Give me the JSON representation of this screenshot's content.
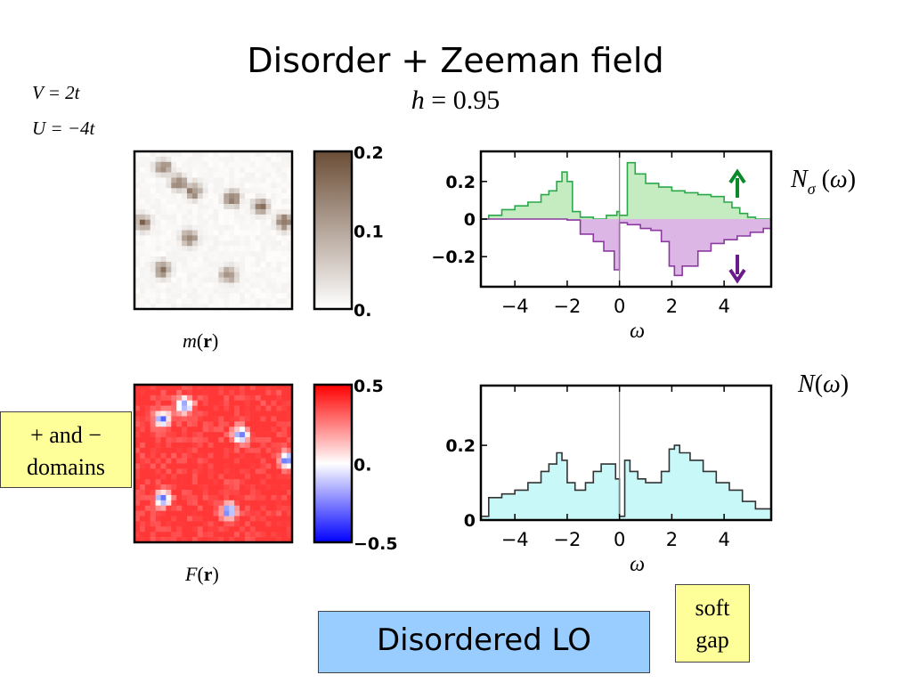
{
  "slide": {
    "title": "Disorder + Zeeman field",
    "h_label": "h = 0.95",
    "params": [
      "V = 2t",
      "U = −4t"
    ],
    "domains_note": [
      "+ and −",
      "domains"
    ],
    "soft_gap_note": [
      "soft",
      "gap"
    ],
    "lo_label": "Disordered LO"
  },
  "colors": {
    "up": "#2aa84a",
    "up_fill": "#c5ecc0",
    "down": "#8c3aa0",
    "down_fill": "#dcb6e4",
    "total_line": "#333333",
    "total_fill": "#c8f8f8",
    "map_m": "#6b4d36",
    "map_f_pos": "#ff2020",
    "map_f_neg": "#0000ff",
    "arrow_up": "#0a8a2a",
    "arrow_down": "#6a1a8a"
  },
  "chart_data": [
    {
      "type": "heatmap",
      "label": "m(r)",
      "colorbar": {
        "ticks": [
          "0.2",
          "0.1",
          "0."
        ],
        "range": [
          0,
          0.2
        ],
        "colors": [
          "#ffffff",
          "#6b4d36"
        ]
      },
      "grid": 30,
      "blobs": [
        [
          0.18,
          0.1
        ],
        [
          0.28,
          0.2
        ],
        [
          0.38,
          0.25
        ],
        [
          0.62,
          0.3
        ],
        [
          0.8,
          0.35
        ],
        [
          0.95,
          0.45
        ],
        [
          0.05,
          0.45
        ],
        [
          0.18,
          0.75
        ],
        [
          0.6,
          0.78
        ],
        [
          0.35,
          0.55
        ]
      ]
    },
    {
      "type": "heatmap",
      "label": "F(r)",
      "colorbar": {
        "ticks": [
          "0.5",
          "0.",
          "−0.5"
        ],
        "range": [
          -0.5,
          0.5
        ],
        "colors": [
          "#0000ff",
          "#ffffff",
          "#ff0000"
        ]
      },
      "grid": 30,
      "blobs": [
        [
          0.32,
          0.13
        ],
        [
          0.18,
          0.22
        ],
        [
          0.67,
          0.32
        ],
        [
          0.97,
          0.48
        ],
        [
          0.18,
          0.72
        ],
        [
          0.6,
          0.8
        ]
      ]
    },
    {
      "type": "area",
      "xlabel": "ω",
      "legend": "Nσ(ω)",
      "xlim": [
        -5.3,
        5.8
      ],
      "ylim": [
        -0.36,
        0.36
      ],
      "xticks": [
        -4,
        -2,
        0,
        2,
        4
      ],
      "xtick_labels": [
        "−4",
        "−2",
        "0",
        "2",
        "4"
      ],
      "yticks": [
        0.2,
        0,
        -0.2
      ],
      "ytick_labels": [
        "0.2",
        "0",
        "−0.2"
      ],
      "series": [
        {
          "role": "up",
          "x": [
            -5.3,
            -5,
            -4.5,
            -4,
            -3.5,
            -3,
            -2.7,
            -2.4,
            -2.2,
            -2.0,
            -1.8,
            -1.5,
            -1.0,
            -0.5,
            -0.1,
            0,
            0.3,
            0.6,
            1.0,
            1.5,
            2.0,
            2.5,
            3.0,
            3.5,
            4.0,
            4.3,
            4.6,
            4.9,
            5.2,
            5.8
          ],
          "values": [
            0,
            0.02,
            0.05,
            0.07,
            0.09,
            0.13,
            0.15,
            0.2,
            0.25,
            0.2,
            0.04,
            0.01,
            0,
            0.02,
            0.04,
            0.02,
            0.3,
            0.24,
            0.19,
            0.17,
            0.15,
            0.14,
            0.13,
            0.12,
            0.09,
            0.06,
            0.03,
            0.01,
            0,
            0
          ]
        },
        {
          "role": "down",
          "x": [
            -5.3,
            -4,
            -3,
            -2,
            -1.5,
            -1.0,
            -0.6,
            -0.2,
            0,
            0.3,
            0.8,
            1.2,
            1.6,
            1.9,
            2.1,
            2.4,
            3.0,
            3.5,
            4.0,
            4.5,
            5.0,
            5.5,
            5.8
          ],
          "values": [
            0,
            0,
            0,
            -0.005,
            -0.08,
            -0.12,
            -0.17,
            -0.27,
            -0.02,
            -0.03,
            -0.05,
            -0.06,
            -0.12,
            -0.25,
            -0.3,
            -0.25,
            -0.17,
            -0.13,
            -0.11,
            -0.09,
            -0.07,
            -0.05,
            -0.04
          ]
        }
      ]
    },
    {
      "type": "area",
      "xlabel": "ω",
      "legend": "N(ω)",
      "xlim": [
        -5.3,
        5.8
      ],
      "ylim": [
        0,
        0.36
      ],
      "xticks": [
        -4,
        -2,
        0,
        2,
        4
      ],
      "xtick_labels": [
        "−4",
        "−2",
        "0",
        "2",
        "4"
      ],
      "yticks": [
        0.2,
        0
      ],
      "ytick_labels": [
        "0.2",
        "0"
      ],
      "series": [
        {
          "role": "total",
          "x": [
            -5.3,
            -5,
            -4.5,
            -4,
            -3.5,
            -3,
            -2.7,
            -2.4,
            -2.2,
            -2.0,
            -1.7,
            -1.3,
            -1.0,
            -0.7,
            -0.4,
            -0.15,
            0,
            0.2,
            0.4,
            0.7,
            1.0,
            1.3,
            1.6,
            1.9,
            2.1,
            2.3,
            2.7,
            3.2,
            3.7,
            4.2,
            4.7,
            5.2,
            5.8
          ],
          "values": [
            0.01,
            0.06,
            0.07,
            0.08,
            0.1,
            0.13,
            0.15,
            0.18,
            0.16,
            0.1,
            0.08,
            0.1,
            0.13,
            0.15,
            0.15,
            0.11,
            0.01,
            0.16,
            0.13,
            0.11,
            0.1,
            0.1,
            0.13,
            0.19,
            0.2,
            0.18,
            0.16,
            0.13,
            0.1,
            0.08,
            0.05,
            0.03,
            0.02
          ]
        }
      ]
    }
  ]
}
